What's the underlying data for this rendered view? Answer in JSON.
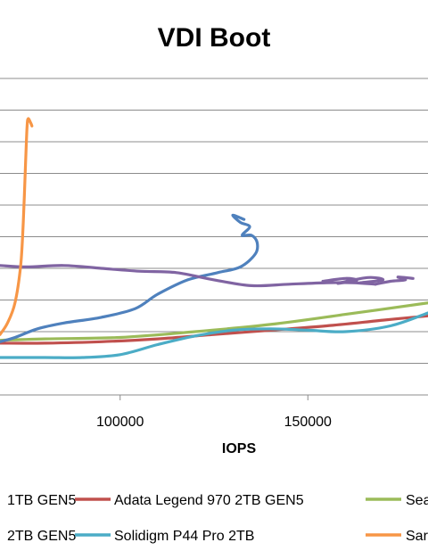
{
  "chart_data": {
    "type": "line",
    "title": "VDI Boot",
    "xlabel": "IOPS",
    "ylabel": "",
    "x_ticks": [
      "100000",
      "150000"
    ],
    "xlim": [
      68000,
      182000
    ],
    "ylim": [
      0,
      11
    ],
    "grid": true,
    "legend_position": "bottom",
    "legend_rows": [
      [
        {
          "text": "1TB GEN5",
          "color": "#4f81bd",
          "partial": true
        },
        {
          "text": "Adata Legend 970 2TB GEN5",
          "color": "#c0504d"
        },
        {
          "text": "Sea",
          "color": "#9bbb59",
          "partial": true
        }
      ],
      [
        {
          "text": "2TB GEN5",
          "color": "#4f81bd",
          "partial": true
        },
        {
          "text": "Solidigm P44 Pro 2TB",
          "color": "#4bacc6"
        },
        {
          "text": "Sar",
          "color": "#f79646",
          "partial": true
        }
      ]
    ],
    "series": [
      {
        "color": "#c0504d",
        "points": [
          [
            68000,
            1.8
          ],
          [
            80000,
            1.8
          ],
          [
            95000,
            1.85
          ],
          [
            110000,
            1.95
          ],
          [
            125000,
            2.1
          ],
          [
            140000,
            2.25
          ],
          [
            155000,
            2.4
          ],
          [
            170000,
            2.6
          ],
          [
            182000,
            2.75
          ]
        ]
      },
      {
        "color": "#9bbb59",
        "points": [
          [
            68000,
            1.9
          ],
          [
            80000,
            1.95
          ],
          [
            100000,
            2.0
          ],
          [
            120000,
            2.2
          ],
          [
            140000,
            2.45
          ],
          [
            160000,
            2.8
          ],
          [
            182000,
            3.2
          ]
        ]
      },
      {
        "color": "#4bacc6",
        "points": [
          [
            68000,
            1.3
          ],
          [
            80000,
            1.3
          ],
          [
            90000,
            1.3
          ],
          [
            100000,
            1.4
          ],
          [
            110000,
            1.75
          ],
          [
            120000,
            2.05
          ],
          [
            130000,
            2.25
          ],
          [
            140000,
            2.3
          ],
          [
            150000,
            2.25
          ],
          [
            160000,
            2.2
          ],
          [
            172000,
            2.4
          ],
          [
            182000,
            2.85
          ]
        ]
      },
      {
        "color": "#4f81bd",
        "points": [
          [
            68000,
            1.85
          ],
          [
            72000,
            2.0
          ],
          [
            78000,
            2.3
          ],
          [
            85000,
            2.5
          ],
          [
            95000,
            2.7
          ],
          [
            104000,
            3.0
          ],
          [
            110000,
            3.5
          ],
          [
            118000,
            4.0
          ],
          [
            126000,
            4.25
          ],
          [
            132000,
            4.45
          ],
          [
            136000,
            4.9
          ],
          [
            136500,
            5.3
          ],
          [
            135000,
            5.55
          ],
          [
            132500,
            5.55
          ],
          [
            134500,
            5.85
          ],
          [
            132000,
            6.0
          ],
          [
            130000,
            6.25
          ],
          [
            133000,
            6.1
          ]
        ]
      },
      {
        "color": "#8064a2",
        "points": [
          [
            68000,
            4.5
          ],
          [
            75000,
            4.45
          ],
          [
            85000,
            4.5
          ],
          [
            95000,
            4.4
          ],
          [
            105000,
            4.3
          ],
          [
            115000,
            4.25
          ],
          [
            125000,
            4.0
          ],
          [
            135000,
            3.8
          ],
          [
            145000,
            3.85
          ],
          [
            155000,
            3.9
          ],
          [
            162000,
            3.9
          ],
          [
            168000,
            3.85
          ]
        ]
      },
      {
        "color": "#8064a2",
        "points": [
          [
            154000,
            3.95
          ],
          [
            160000,
            4.05
          ],
          [
            163000,
            3.98
          ],
          [
            158000,
            3.88
          ],
          [
            166000,
            4.08
          ],
          [
            170000,
            4.0
          ],
          [
            164000,
            3.9
          ]
        ]
      },
      {
        "color": "#8064a2",
        "points": [
          [
            168000,
            3.85
          ],
          [
            172000,
            3.95
          ],
          [
            176000,
            4.0
          ],
          [
            174000,
            4.1
          ],
          [
            178000,
            4.05
          ]
        ]
      },
      {
        "color": "#f79646",
        "points": [
          [
            68000,
            2.1
          ],
          [
            70000,
            2.5
          ],
          [
            72000,
            3.2
          ],
          [
            73500,
            4.5
          ],
          [
            74200,
            6.0
          ],
          [
            74800,
            8.0
          ],
          [
            75200,
            9.3
          ],
          [
            75500,
            9.6
          ],
          [
            76200,
            9.45
          ],
          [
            76500,
            9.35
          ]
        ]
      }
    ]
  }
}
